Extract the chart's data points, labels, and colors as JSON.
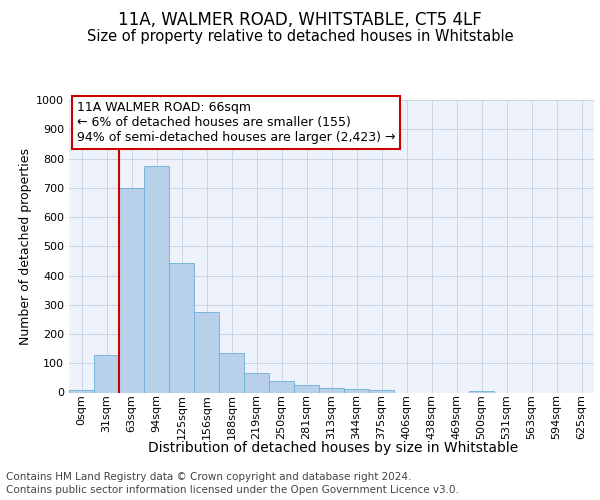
{
  "title": "11A, WALMER ROAD, WHITSTABLE, CT5 4LF",
  "subtitle": "Size of property relative to detached houses in Whitstable",
  "xlabel": "Distribution of detached houses by size in Whitstable",
  "ylabel": "Number of detached properties",
  "categories": [
    "0sqm",
    "31sqm",
    "63sqm",
    "94sqm",
    "125sqm",
    "156sqm",
    "188sqm",
    "219sqm",
    "250sqm",
    "281sqm",
    "313sqm",
    "344sqm",
    "375sqm",
    "406sqm",
    "438sqm",
    "469sqm",
    "500sqm",
    "531sqm",
    "563sqm",
    "594sqm",
    "625sqm"
  ],
  "bar_heights": [
    8,
    128,
    700,
    775,
    443,
    275,
    135,
    68,
    40,
    25,
    15,
    13,
    10,
    0,
    0,
    0,
    5,
    0,
    0,
    0,
    0
  ],
  "bar_color": "#b8d0ea",
  "bar_edge_color": "#6aafd6",
  "annotation_text_line1": "11A WALMER ROAD: 66sqm",
  "annotation_text_line2": "← 6% of detached houses are smaller (155)",
  "annotation_text_line3": "94% of semi-detached houses are larger (2,423) →",
  "annotation_box_facecolor": "#ffffff",
  "annotation_box_edgecolor": "#cc0000",
  "vline_color": "#cc0000",
  "vline_x": 1.5,
  "ylim": [
    0,
    1000
  ],
  "yticks": [
    0,
    100,
    200,
    300,
    400,
    500,
    600,
    700,
    800,
    900,
    1000
  ],
  "grid_color": "#c8d4e8",
  "plot_bg_color": "#eef2fa",
  "fig_bg_color": "#ffffff",
  "footer_line1": "Contains HM Land Registry data © Crown copyright and database right 2024.",
  "footer_line2": "Contains public sector information licensed under the Open Government Licence v3.0.",
  "title_fontsize": 12,
  "subtitle_fontsize": 10.5,
  "xlabel_fontsize": 10,
  "ylabel_fontsize": 9,
  "tick_fontsize": 8,
  "annotation_fontsize": 9,
  "footer_fontsize": 7.5
}
